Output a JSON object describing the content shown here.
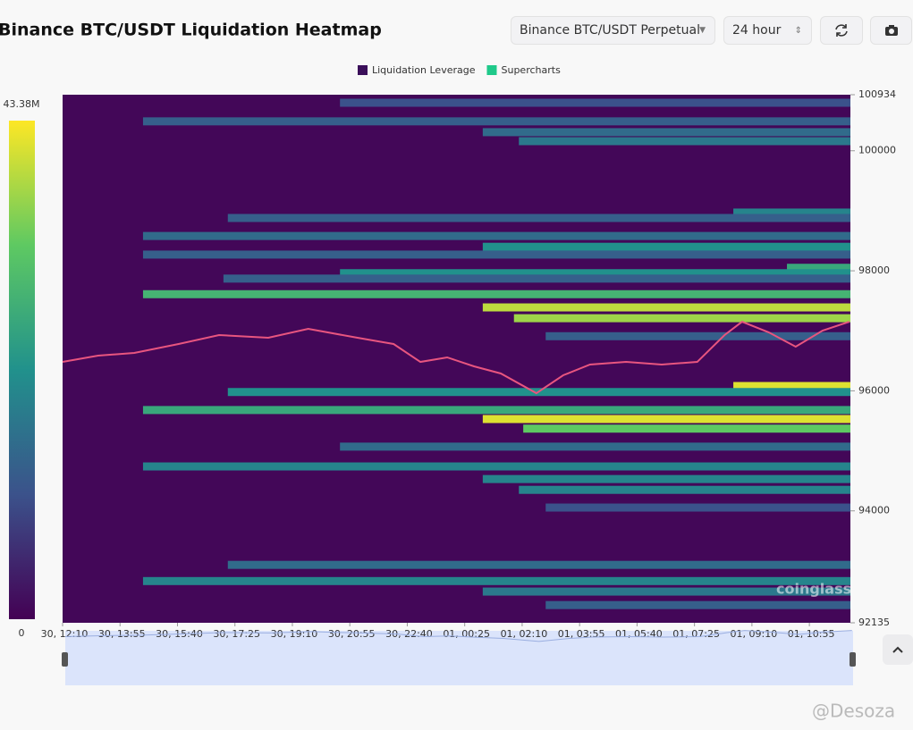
{
  "controls": {
    "pair": "Binance BTC/USDT Perpetual",
    "range": "24 hour"
  },
  "watermarks": [
    "coinglass",
    "@Desoza"
  ],
  "chart_data": {
    "type": "heatmap",
    "title": "Binance BTC/USDT Liquidation Heatmap",
    "legend": [
      {
        "name": "Liquidation Leverage",
        "color": "#3b0f5a"
      },
      {
        "name": "Supercharts",
        "color": "#1fc98a"
      }
    ],
    "colormap": [
      "#440154",
      "#3b528b",
      "#21918c",
      "#5ec962",
      "#fde725"
    ],
    "clim": [
      0,
      43.38
    ],
    "cticks": [
      0,
      {
        "value": 43.38,
        "label": "43.38M"
      }
    ],
    "xlim": [
      0,
      1440
    ],
    "xticks": [
      {
        "value": 0,
        "label": "30, 12:10"
      },
      {
        "value": 105,
        "label": "30, 13:55"
      },
      {
        "value": 210,
        "label": "30, 15:40"
      },
      {
        "value": 315,
        "label": "30, 17:25"
      },
      {
        "value": 420,
        "label": "30, 19:10"
      },
      {
        "value": 525,
        "label": "30, 20:55"
      },
      {
        "value": 630,
        "label": "30, 22:40"
      },
      {
        "value": 735,
        "label": "01, 00:25"
      },
      {
        "value": 840,
        "label": "01, 02:10"
      },
      {
        "value": 945,
        "label": "01, 03:55"
      },
      {
        "value": 1050,
        "label": "01, 05:40"
      },
      {
        "value": 1155,
        "label": "01, 07:25"
      },
      {
        "value": 1260,
        "label": "01, 09:10"
      },
      {
        "value": 1365,
        "label": "01, 10:55"
      }
    ],
    "ylim": [
      92135,
      100934
    ],
    "yticks": [
      92135,
      94000,
      96000,
      98000,
      100000,
      100934
    ],
    "levels": {
      "prices": [
        100800,
        100490,
        100310,
        100160,
        98970,
        98880,
        98580,
        98400,
        98270,
        98050,
        97960,
        97870,
        97610,
        97390,
        97210,
        96910,
        96080,
        95980,
        95680,
        95530,
        95370,
        95070,
        94740,
        94530,
        94350,
        94055,
        93100,
        92830,
        92655,
        92430
      ],
      "start": [
        507,
        147,
        768,
        834,
        1226,
        302,
        147,
        768,
        147,
        1324,
        507,
        294,
        147,
        768,
        825,
        883,
        1226,
        302,
        147,
        768,
        842,
        507,
        147,
        768,
        834,
        883,
        302,
        147,
        768,
        883
      ],
      "values": [
        10.8,
        13,
        15.2,
        17.4,
        19.5,
        13,
        15.2,
        21.7,
        13,
        26,
        21.7,
        13,
        28.2,
        39,
        36.9,
        13,
        41.2,
        21.7,
        26,
        41.2,
        32.5,
        15.2,
        19.5,
        19.5,
        19.5,
        10.8,
        15.2,
        19.5,
        17.4,
        13
      ]
    },
    "price": {
      "color": "#e8557f",
      "x": [
        0,
        65,
        131,
        212,
        286,
        376,
        449,
        539,
        605,
        654,
        703,
        752,
        801,
        866,
        915,
        964,
        1030,
        1095,
        1160,
        1210,
        1242,
        1291,
        1340,
        1389,
        1438
      ],
      "values": [
        96482,
        96587,
        96631,
        96780,
        96929,
        96884,
        97033,
        96884,
        96780,
        96482,
        96557,
        96408,
        96289,
        95961,
        96259,
        96438,
        96482,
        96438,
        96482,
        96929,
        97152,
        96973,
        96735,
        97003,
        97152
      ]
    }
  }
}
